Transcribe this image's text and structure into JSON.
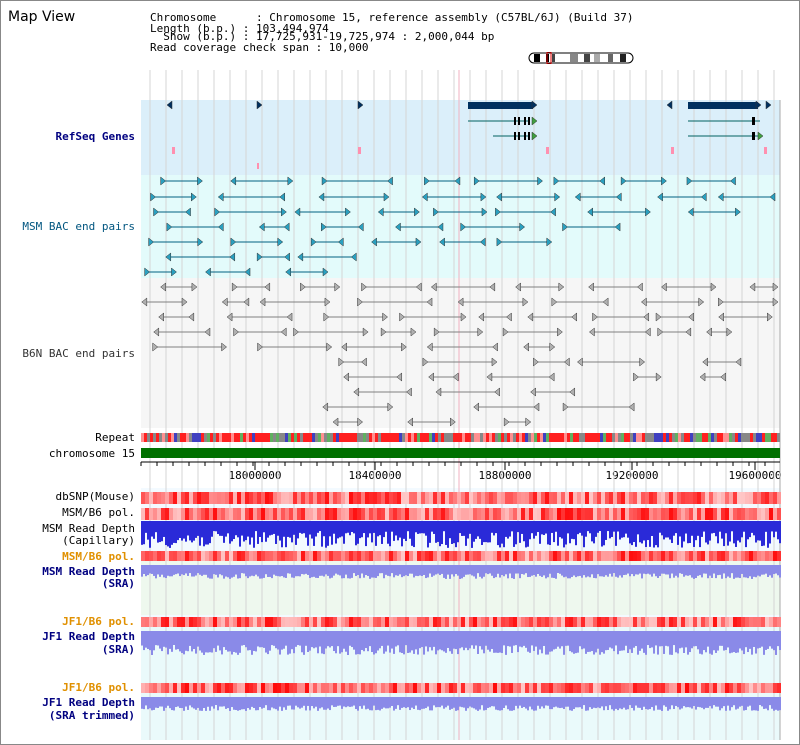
{
  "header": {
    "title": "Map View",
    "info_lines": [
      "Chromosome      : Chromosome 15, reference assembly (C57BL/6J) (Build 37)",
      "Length (b.p.) : 103,494,974",
      "  Show (b.p.) : 17,725,931-19,725,974 : 2,000,044 bp",
      "Read coverage check span : 10,000"
    ]
  },
  "tracks": {
    "refseq": "RefSeq Genes",
    "msm_bac": "MSM BAC end pairs",
    "b6n_bac": "B6N BAC end pairs",
    "repeat": "Repeat",
    "chromosome": "chromosome 15",
    "dbsnp": "dbSNP(Mouse)",
    "msm_b6_pol_1": "MSM/B6 pol.",
    "msm_depth_cap_1": "MSM Read Depth",
    "msm_depth_cap_2": "(Capillary)",
    "msm_b6_pol_2": "MSM/B6 pol.",
    "msm_depth_sra_1": "MSM Read Depth",
    "msm_depth_sra_2": "(SRA)",
    "jf1_b6_pol_1": "JF1/B6 pol.",
    "jf1_depth_sra_1": "JF1 Read Depth",
    "jf1_depth_sra_2": "(SRA)",
    "jf1_b6_pol_2": "JF1/B6 pol.",
    "jf1_depth_trim_1": "JF1 Read Depth",
    "jf1_depth_trim_2": "(SRA trimmed)"
  },
  "axis": {
    "range": [
      17725931,
      19725974
    ],
    "ticks": [
      "18000000",
      "18400000",
      "18800000",
      "19200000",
      "19600000"
    ]
  },
  "colors": {
    "refseq_bg": "#dbeffa",
    "msm_bac_bg": "#e3fbfb",
    "b6n_bg": "#f6f6f6",
    "chromosome_bar": "#007000",
    "gene_navy": "#00305f",
    "msm_bac_line": "#006080",
    "b6n_line": "#808080",
    "snp_red": "#ff2020",
    "depth_blue": "#2a2ad8",
    "depth_light_blue": "#8a8ae8",
    "jf1_orange": "#e09000"
  }
}
